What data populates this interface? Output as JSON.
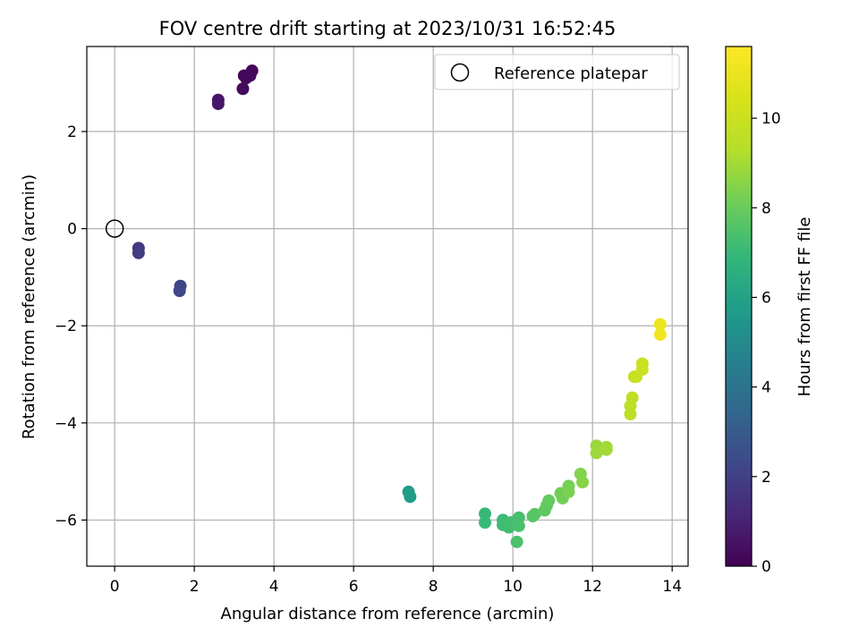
{
  "chart_data": {
    "type": "scatter",
    "title": "FOV centre drift starting at 2023/10/31 16:52:45",
    "xlabel": "Angular distance from reference (arcmin)",
    "ylabel": "Rotation from reference (arcmin)",
    "xlim": [
      -0.7,
      14.4
    ],
    "ylim": [
      -6.95,
      3.75
    ],
    "xticks": [
      0,
      2,
      4,
      6,
      8,
      10,
      12,
      14
    ],
    "yticks": [
      -6,
      -4,
      -2,
      0,
      2
    ],
    "xtick_labels": [
      "0",
      "2",
      "4",
      "6",
      "8",
      "10",
      "12",
      "14"
    ],
    "ytick_labels": [
      "−6",
      "−4",
      "−2",
      "0",
      "2"
    ],
    "grid": true,
    "colorbar": {
      "label": "Hours from first FF file",
      "range": [
        0,
        11.6
      ],
      "ticks": [
        0,
        2,
        4,
        6,
        8,
        10
      ],
      "tick_labels": [
        "0",
        "2",
        "4",
        "6",
        "8",
        "10"
      ],
      "colormap": "viridis"
    },
    "legend": {
      "position": "top-right",
      "entries": [
        "Reference platepar"
      ]
    },
    "reference_point": {
      "x": 0,
      "y": 0
    },
    "points": [
      {
        "x": 3.25,
        "y": 3.15,
        "t": 0.1
      },
      {
        "x": 3.45,
        "y": 3.25,
        "t": 0.15
      },
      {
        "x": 3.4,
        "y": 3.15,
        "t": 0.2
      },
      {
        "x": 3.3,
        "y": 3.1,
        "t": 0.25
      },
      {
        "x": 3.22,
        "y": 2.88,
        "t": 0.3
      },
      {
        "x": 2.6,
        "y": 2.65,
        "t": 0.6
      },
      {
        "x": 2.6,
        "y": 2.57,
        "t": 0.65
      },
      {
        "x": 0.6,
        "y": -0.4,
        "t": 1.8
      },
      {
        "x": 0.6,
        "y": -0.5,
        "t": 1.85
      },
      {
        "x": 1.65,
        "y": -1.18,
        "t": 2.2
      },
      {
        "x": 1.63,
        "y": -1.28,
        "t": 2.25
      },
      {
        "x": 7.38,
        "y": -5.42,
        "t": 5.7
      },
      {
        "x": 7.42,
        "y": -5.52,
        "t": 5.75
      },
      {
        "x": 9.3,
        "y": -5.87,
        "t": 7.0
      },
      {
        "x": 9.3,
        "y": -6.05,
        "t": 7.05
      },
      {
        "x": 9.75,
        "y": -6.0,
        "t": 7.1
      },
      {
        "x": 9.75,
        "y": -6.1,
        "t": 7.15
      },
      {
        "x": 9.9,
        "y": -6.15,
        "t": 7.2
      },
      {
        "x": 9.95,
        "y": -6.05,
        "t": 7.25
      },
      {
        "x": 10.1,
        "y": -6.0,
        "t": 7.3
      },
      {
        "x": 10.15,
        "y": -5.95,
        "t": 7.35
      },
      {
        "x": 10.15,
        "y": -6.12,
        "t": 7.4
      },
      {
        "x": 10.1,
        "y": -6.45,
        "t": 7.45
      },
      {
        "x": 10.5,
        "y": -5.92,
        "t": 7.6
      },
      {
        "x": 10.55,
        "y": -5.88,
        "t": 7.65
      },
      {
        "x": 10.8,
        "y": -5.8,
        "t": 7.8
      },
      {
        "x": 10.85,
        "y": -5.7,
        "t": 7.85
      },
      {
        "x": 10.9,
        "y": -5.6,
        "t": 7.9
      },
      {
        "x": 11.2,
        "y": -5.45,
        "t": 8.1
      },
      {
        "x": 11.25,
        "y": -5.55,
        "t": 8.15
      },
      {
        "x": 11.4,
        "y": -5.3,
        "t": 8.25
      },
      {
        "x": 11.4,
        "y": -5.42,
        "t": 8.3
      },
      {
        "x": 11.7,
        "y": -5.05,
        "t": 8.45
      },
      {
        "x": 11.75,
        "y": -5.22,
        "t": 8.5
      },
      {
        "x": 12.1,
        "y": -4.47,
        "t": 8.8
      },
      {
        "x": 12.1,
        "y": -4.62,
        "t": 8.85
      },
      {
        "x": 12.35,
        "y": -4.5,
        "t": 8.95
      },
      {
        "x": 12.35,
        "y": -4.55,
        "t": 9.0
      },
      {
        "x": 12.95,
        "y": -3.65,
        "t": 9.5
      },
      {
        "x": 12.95,
        "y": -3.82,
        "t": 9.55
      },
      {
        "x": 13.0,
        "y": -3.48,
        "t": 9.6
      },
      {
        "x": 13.05,
        "y": -3.05,
        "t": 9.8
      },
      {
        "x": 13.1,
        "y": -3.05,
        "t": 9.85
      },
      {
        "x": 13.25,
        "y": -2.78,
        "t": 10.0
      },
      {
        "x": 13.25,
        "y": -2.9,
        "t": 10.05
      },
      {
        "x": 13.7,
        "y": -1.97,
        "t": 11.1
      },
      {
        "x": 13.7,
        "y": -2.18,
        "t": 11.2
      }
    ]
  }
}
